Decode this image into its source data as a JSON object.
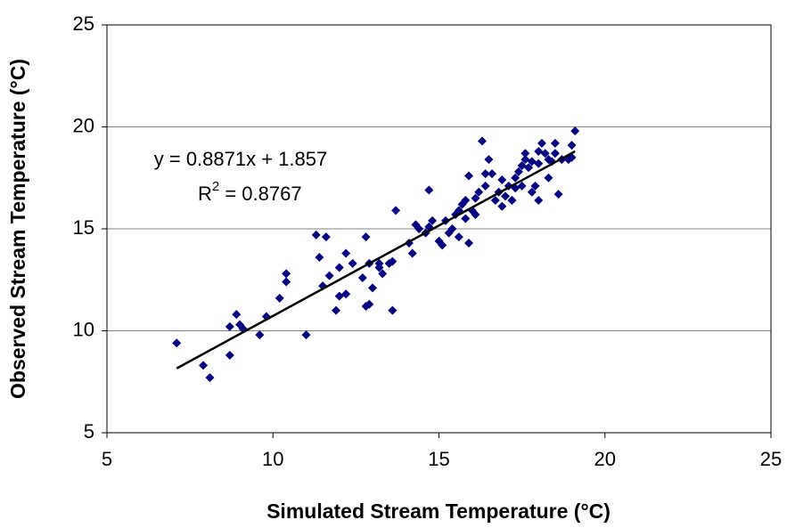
{
  "chart_data": {
    "type": "scatter",
    "x_label": "Simulated Stream Temperature (°C)",
    "y_label": "Observed Stream Temperature (°C)",
    "xlim": [
      5,
      25
    ],
    "xticks": [
      5,
      10,
      15,
      20,
      25
    ],
    "ylim": [
      5,
      25
    ],
    "yticks": [
      5,
      10,
      15,
      20,
      25
    ],
    "grid": true,
    "series": [
      {
        "color": "#000080",
        "x": [
          7.1,
          7.9,
          8.1,
          8.7,
          8.7,
          8.9,
          9.0,
          9.1,
          9.6,
          9.8,
          10.2,
          10.4,
          10.4,
          11.0,
          11.3,
          11.4,
          11.6,
          11.5,
          11.7,
          11.9,
          12.0,
          12.0,
          12.2,
          12.2,
          12.4,
          12.7,
          12.8,
          12.8,
          12.9,
          12.9,
          13.0,
          13.2,
          13.2,
          13.3,
          13.5,
          13.6,
          13.6,
          13.7,
          14.1,
          14.2,
          14.3,
          14.4,
          14.6,
          14.7,
          14.7,
          14.8,
          15.0,
          15.1,
          15.2,
          15.3,
          15.4,
          15.5,
          15.6,
          15.6,
          15.7,
          15.8,
          15.8,
          15.9,
          15.9,
          16.0,
          16.1,
          16.1,
          16.2,
          16.3,
          16.4,
          16.4,
          16.5,
          16.6,
          16.7,
          16.8,
          16.9,
          16.9,
          17.0,
          17.1,
          17.2,
          17.2,
          17.3,
          17.3,
          17.4,
          17.5,
          17.5,
          17.6,
          17.6,
          17.7,
          17.8,
          17.8,
          17.9,
          18.0,
          18.0,
          18.0,
          18.1,
          18.2,
          18.3,
          18.3,
          18.4,
          18.5,
          18.5,
          18.6,
          18.7,
          18.9,
          19.0,
          19.0,
          19.1
        ],
        "values": [
          9.4,
          8.3,
          7.7,
          8.8,
          10.2,
          10.8,
          10.3,
          10.1,
          9.8,
          10.7,
          11.6,
          12.4,
          12.8,
          9.8,
          14.7,
          13.6,
          14.6,
          12.2,
          12.7,
          11.0,
          11.7,
          13.1,
          13.8,
          11.8,
          13.3,
          12.6,
          11.2,
          14.6,
          13.3,
          11.3,
          12.1,
          13.1,
          13.3,
          12.8,
          13.3,
          13.4,
          11.0,
          15.9,
          14.3,
          13.8,
          15.2,
          15.0,
          14.8,
          15.1,
          16.9,
          15.4,
          14.4,
          14.2,
          15.4,
          14.8,
          15.0,
          15.7,
          15.9,
          14.6,
          16.2,
          15.5,
          16.4,
          17.6,
          14.3,
          15.9,
          16.5,
          15.7,
          16.8,
          19.3,
          17.1,
          17.7,
          18.4,
          17.7,
          16.4,
          16.8,
          17.4,
          16.1,
          16.6,
          17.1,
          16.4,
          16.4,
          17.0,
          17.5,
          17.8,
          18.1,
          17.1,
          18.4,
          18.7,
          18.0,
          16.8,
          18.3,
          17.1,
          18.2,
          16.4,
          18.8,
          19.2,
          18.7,
          18.4,
          17.5,
          18.3,
          19.2,
          18.7,
          16.7,
          18.4,
          18.4,
          18.5,
          19.1,
          19.8
        ]
      }
    ],
    "trendline": {
      "x": [
        7.1,
        19.1
      ],
      "y": [
        8.155,
        18.801
      ],
      "color": "#000000"
    },
    "equation": "y = 0.8871x + 1.857",
    "r_squared": {
      "base": "R",
      "sup": "2",
      "rest": " = 0.8767"
    }
  }
}
